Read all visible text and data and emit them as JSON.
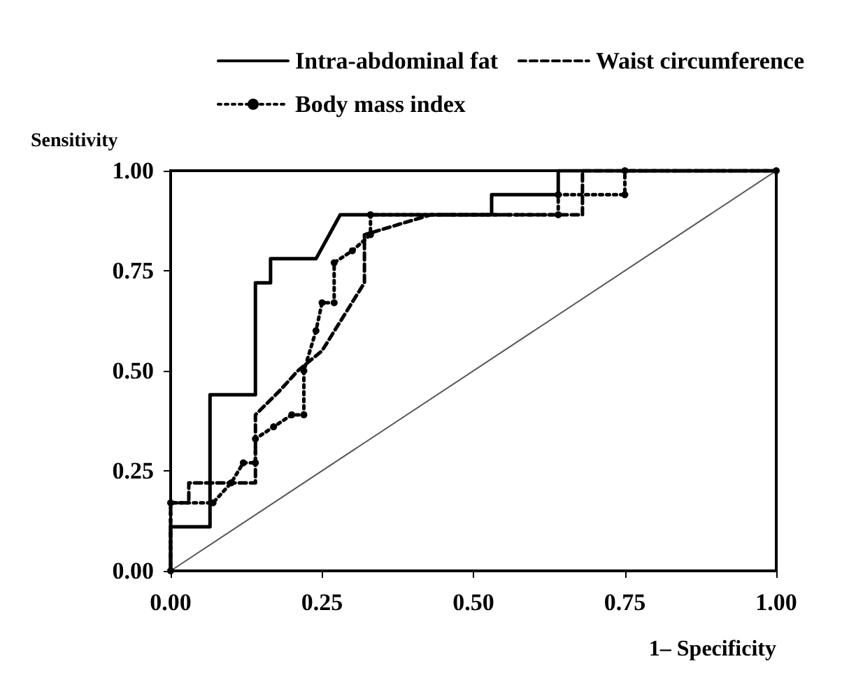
{
  "chart_data": {
    "type": "line",
    "xlabel": "1– Specificity",
    "ylabel": "Sensitivity",
    "series": [
      {
        "name": "Intra-abdominal fat",
        "color": "#000000",
        "line_style": "solid",
        "marker": "none",
        "x": [
          0,
          0,
          0.065,
          0.065,
          0.14,
          0.14,
          0.165,
          0.165,
          0.24,
          0.28,
          0.53,
          0.53,
          0.64,
          0.64,
          1
        ],
        "values": [
          0,
          0.11,
          0.11,
          0.44,
          0.44,
          0.72,
          0.72,
          0.78,
          0.78,
          0.89,
          0.89,
          0.94,
          0.94,
          1,
          1
        ]
      },
      {
        "name": "Waist circumference",
        "color": "#000000",
        "line_style": "dashed",
        "marker": "none",
        "x": [
          0,
          0,
          0.03,
          0.03,
          0.14,
          0.14,
          0.18,
          0.21,
          0.25,
          0.32,
          0.32,
          0.43,
          0.68,
          0.68,
          1
        ],
        "values": [
          0,
          0.17,
          0.17,
          0.22,
          0.22,
          0.39,
          0.45,
          0.5,
          0.55,
          0.72,
          0.84,
          0.89,
          0.89,
          1,
          1
        ]
      },
      {
        "name": "Body mass index",
        "color": "#000000",
        "line_style": "dotted",
        "marker": "circle",
        "x": [
          0,
          0,
          0.07,
          0.1,
          0.12,
          0.14,
          0.14,
          0.17,
          0.2,
          0.22,
          0.22,
          0.24,
          0.25,
          0.27,
          0.27,
          0.3,
          0.33,
          0.33,
          0.64,
          0.64,
          0.75,
          0.75,
          1
        ],
        "values": [
          0,
          0.17,
          0.17,
          0.22,
          0.27,
          0.27,
          0.33,
          0.36,
          0.39,
          0.39,
          0.5,
          0.6,
          0.67,
          0.67,
          0.77,
          0.8,
          0.84,
          0.89,
          0.89,
          0.94,
          0.94,
          1,
          1
        ]
      },
      {
        "color": "#555555",
        "line_style": "solid",
        "marker": "none",
        "x": [
          0,
          1
        ],
        "values": [
          0,
          1
        ]
      }
    ],
    "xlim": [
      0,
      1
    ],
    "ylim": [
      0,
      1
    ],
    "xticks": [
      {
        "value": 0,
        "label": "0.00"
      },
      {
        "value": 0.25,
        "label": "0.25"
      },
      {
        "value": 0.5,
        "label": "0.50"
      },
      {
        "value": 0.75,
        "label": "0.75"
      },
      {
        "value": 1,
        "label": "1.00"
      }
    ],
    "yticks": [
      {
        "value": 0,
        "label": "0.00"
      },
      {
        "value": 0.25,
        "label": "0.25"
      },
      {
        "value": 0.5,
        "label": "0.50"
      },
      {
        "value": 0.75,
        "label": "0.75"
      },
      {
        "value": 1,
        "label": "1.00"
      }
    ],
    "legend": "top",
    "grid": false
  }
}
